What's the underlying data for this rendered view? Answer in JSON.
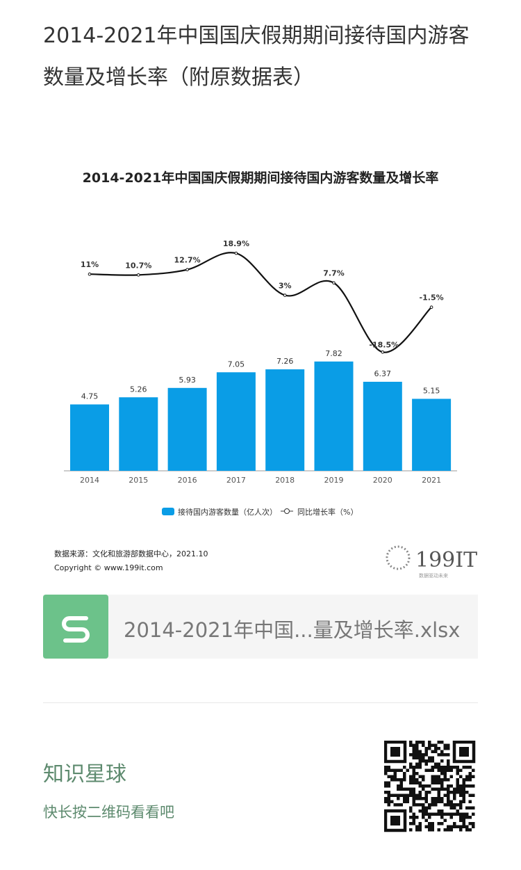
{
  "article": {
    "title": "2014-2021年中国国庆假期期间接待国内游客数量及增长率（附原数据表）"
  },
  "chart_data": {
    "type": "bar+line",
    "title": "2014-2021年中国国庆假期期间接待国内游客数量及增长率",
    "categories": [
      "2014",
      "2015",
      "2016",
      "2017",
      "2018",
      "2019",
      "2020",
      "2021"
    ],
    "series": [
      {
        "name": "接待国内游客数量（亿人次）",
        "type": "bar",
        "color": "#0a9de6",
        "values": [
          4.75,
          5.26,
          5.93,
          7.05,
          7.26,
          7.82,
          6.37,
          5.15
        ],
        "labels": [
          "4.75",
          "5.26",
          "5.93",
          "7.05",
          "7.26",
          "7.82",
          "6.37",
          "5.15"
        ]
      },
      {
        "name": "同比增长率（%）",
        "type": "line",
        "color": "#111111",
        "values": [
          11,
          10.7,
          12.7,
          18.9,
          3,
          7.7,
          -18.5,
          -1.5
        ],
        "labels": [
          "11%",
          "10.7%",
          "12.7%",
          "18.9%",
          "3%",
          "7.7%",
          "-18.5%",
          "-1.5%"
        ]
      }
    ],
    "legend_position": "bottom",
    "source": "数据来源：文化和旅游部数据中心，2021.10",
    "copyright": "Copyright ©   www.199it.com",
    "logo": "199IT",
    "logo_sub": "数据驱动未来"
  },
  "attachment": {
    "filename": "2014-2021年中国...量及增长率.xlsx"
  },
  "footer": {
    "title": "知识星球",
    "subtitle": "快长按二维码看看吧"
  }
}
